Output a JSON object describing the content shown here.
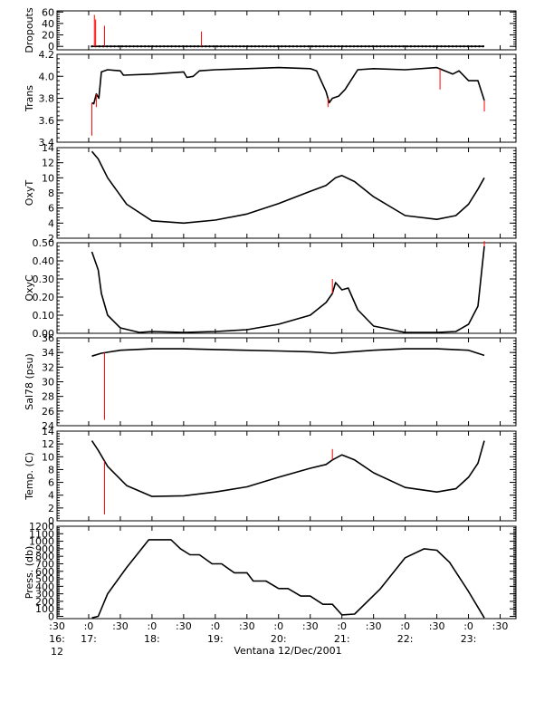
{
  "figure": {
    "xlabel": "Ventana 12/Dec/2001",
    "x_ticks": [
      {
        "t": 16.5,
        "line1": ":30",
        "line2": "16:",
        "line3": "12"
      },
      {
        "t": 17.0,
        "line1": ":0",
        "line2": "17:",
        "line3": ""
      },
      {
        "t": 17.5,
        "line1": ":30",
        "line2": "",
        "line3": ""
      },
      {
        "t": 18.0,
        "line1": ":0",
        "line2": "18:",
        "line3": ""
      },
      {
        "t": 18.5,
        "line1": ":30",
        "line2": "",
        "line3": ""
      },
      {
        "t": 19.0,
        "line1": ":0",
        "line2": "19:",
        "line3": ""
      },
      {
        "t": 19.5,
        "line1": ":30",
        "line2": "",
        "line3": ""
      },
      {
        "t": 20.0,
        "line1": ":0",
        "line2": "20:",
        "line3": ""
      },
      {
        "t": 20.5,
        "line1": ":30",
        "line2": "",
        "line3": ""
      },
      {
        "t": 21.0,
        "line1": ":0",
        "line2": "21:",
        "line3": ""
      },
      {
        "t": 21.5,
        "line1": ":30",
        "line2": "",
        "line3": ""
      },
      {
        "t": 22.0,
        "line1": ":0",
        "line2": "22:",
        "line3": ""
      },
      {
        "t": 22.5,
        "line1": ":30",
        "line2": "",
        "line3": ""
      },
      {
        "t": 23.0,
        "line1": ":0",
        "line2": "23:",
        "line3": ""
      },
      {
        "t": 23.5,
        "line1": ":30",
        "line2": "",
        "line3": ""
      }
    ],
    "xlim": [
      16.5,
      23.75
    ]
  },
  "chart_data": [
    {
      "type": "line",
      "ylabel": "Dropouts",
      "ylim": [
        -6,
        62
      ],
      "yticks": [
        0,
        20,
        40,
        60
      ],
      "ytick_labels": [
        "0",
        "20",
        "40",
        "60"
      ],
      "series": [
        {
          "color": "#000000",
          "x": [
            17.05,
            23.25
          ],
          "y": [
            0,
            0
          ],
          "markers": true
        },
        {
          "color": "#ff0000",
          "spikes": [
            [
              17.09,
              55
            ],
            [
              17.11,
              47
            ],
            [
              17.25,
              36
            ],
            [
              18.78,
              26
            ]
          ]
        }
      ]
    },
    {
      "type": "line",
      "ylabel": "Trans",
      "ylim": [
        3.4,
        4.2
      ],
      "yticks": [
        3.4,
        3.6,
        3.8,
        4.0,
        4.2
      ],
      "ytick_labels": [
        "3.4",
        "3.6",
        "3.8",
        "4.0",
        "4.2"
      ],
      "series": [
        {
          "color": "#000000",
          "x": [
            17.05,
            17.08,
            17.12,
            17.16,
            17.2,
            17.3,
            17.5,
            17.55,
            18.0,
            18.5,
            18.55,
            18.65,
            18.75,
            19.0,
            19.5,
            20.0,
            20.5,
            20.6,
            20.75,
            20.8,
            20.85,
            20.95,
            21.05,
            21.25,
            21.5,
            22.0,
            22.5,
            22.75,
            22.85,
            23.0,
            23.15,
            23.25
          ],
          "y": [
            3.76,
            3.75,
            3.84,
            3.8,
            4.04,
            4.06,
            4.05,
            4.01,
            4.02,
            4.04,
            3.99,
            4.0,
            4.05,
            4.06,
            4.07,
            4.08,
            4.07,
            4.05,
            3.86,
            3.76,
            3.8,
            3.82,
            3.88,
            4.06,
            4.07,
            4.06,
            4.08,
            4.02,
            4.05,
            3.96,
            3.96,
            3.78
          ]
        },
        {
          "color": "#ff0000",
          "spikes": [
            [
              17.05,
              3.46
            ],
            [
              17.12,
              3.72
            ],
            [
              20.78,
              3.72
            ],
            [
              22.55,
              3.88
            ],
            [
              23.25,
              3.68
            ]
          ]
        }
      ]
    },
    {
      "type": "line",
      "ylabel": "OxyT",
      "ylim": [
        2,
        14
      ],
      "yticks": [
        2,
        4,
        6,
        8,
        10,
        12,
        14
      ],
      "ytick_labels": [
        "2",
        "4",
        "6",
        "8",
        "10",
        "12",
        "14"
      ],
      "series": [
        {
          "color": "#000000",
          "x": [
            17.05,
            17.15,
            17.3,
            17.6,
            18.0,
            18.5,
            19.0,
            19.5,
            20.0,
            20.5,
            20.75,
            20.9,
            21.0,
            21.2,
            21.5,
            22.0,
            22.5,
            22.8,
            23.0,
            23.15,
            23.25
          ],
          "y": [
            13.5,
            12.5,
            10.0,
            6.5,
            4.3,
            4.0,
            4.4,
            5.2,
            6.6,
            8.2,
            9.0,
            10.0,
            10.3,
            9.5,
            7.5,
            5.0,
            4.5,
            5.0,
            6.5,
            8.5,
            10.0
          ]
        }
      ]
    },
    {
      "type": "line",
      "ylabel": "OxyC",
      "ylim": [
        0,
        0.5
      ],
      "yticks": [
        0,
        0.1,
        0.2,
        0.3,
        0.4,
        0.5
      ],
      "ytick_labels": [
        "0.00",
        "0.10",
        "0.20",
        "0.30",
        "0.40",
        "0.50"
      ],
      "series": [
        {
          "color": "#000000",
          "x": [
            17.05,
            17.1,
            17.15,
            17.2,
            17.3,
            17.5,
            17.8,
            18.0,
            18.5,
            19.0,
            19.5,
            20.0,
            20.5,
            20.75,
            20.85,
            20.9,
            21.0,
            21.1,
            21.25,
            21.5,
            22.0,
            22.5,
            22.8,
            23.0,
            23.15,
            23.25
          ],
          "y": [
            0.45,
            0.4,
            0.35,
            0.22,
            0.1,
            0.03,
            0.005,
            0.01,
            0.005,
            0.01,
            0.02,
            0.05,
            0.1,
            0.17,
            0.22,
            0.28,
            0.24,
            0.25,
            0.13,
            0.04,
            0.005,
            0.005,
            0.01,
            0.05,
            0.15,
            0.48
          ]
        },
        {
          "color": "#ff0000",
          "spikes": [
            [
              20.85,
              0.3
            ],
            [
              23.25,
              0.51
            ]
          ]
        }
      ]
    },
    {
      "type": "line",
      "ylabel": "Sal78 (psu)",
      "ylim": [
        24,
        36
      ],
      "yticks": [
        24,
        26,
        28,
        30,
        32,
        34,
        36
      ],
      "ytick_labels": [
        "24",
        "26",
        "28",
        "30",
        "32",
        "34",
        "36"
      ],
      "series": [
        {
          "color": "#000000",
          "x": [
            17.05,
            17.2,
            17.5,
            18.0,
            18.5,
            19.0,
            20.0,
            20.5,
            20.85,
            21.0,
            21.5,
            22.0,
            22.5,
            23.0,
            23.25
          ],
          "y": [
            33.5,
            33.9,
            34.3,
            34.5,
            34.5,
            34.4,
            34.2,
            34.1,
            33.9,
            34.0,
            34.3,
            34.5,
            34.5,
            34.3,
            33.6
          ]
        },
        {
          "color": "#ff0000",
          "spikes": [
            [
              17.25,
              24.8
            ]
          ]
        }
      ]
    },
    {
      "type": "line",
      "ylabel": "Temp. (C)",
      "ylim": [
        0,
        14
      ],
      "yticks": [
        0,
        2,
        4,
        6,
        8,
        10,
        12,
        14
      ],
      "ytick_labels": [
        "0",
        "2",
        "4",
        "6",
        "8",
        "10",
        "12",
        "14"
      ],
      "series": [
        {
          "color": "#000000",
          "x": [
            17.05,
            17.15,
            17.3,
            17.6,
            18.0,
            18.5,
            19.0,
            19.5,
            20.0,
            20.5,
            20.75,
            20.85,
            21.0,
            21.2,
            21.5,
            22.0,
            22.5,
            22.8,
            23.0,
            23.15,
            23.25
          ],
          "y": [
            12.5,
            11.0,
            8.5,
            5.5,
            3.8,
            3.9,
            4.5,
            5.3,
            6.8,
            8.2,
            8.8,
            9.5,
            10.3,
            9.5,
            7.5,
            5.2,
            4.5,
            5.0,
            6.8,
            9.0,
            12.5
          ]
        },
        {
          "color": "#ff0000",
          "spikes": [
            [
              17.25,
              1.0
            ],
            [
              20.85,
              11.2
            ]
          ]
        }
      ]
    },
    {
      "type": "line",
      "ylabel": "Press. (db)",
      "ylim": [
        -30,
        1200
      ],
      "yticks": [
        0,
        100,
        200,
        300,
        400,
        500,
        600,
        700,
        800,
        900,
        1000,
        1100,
        1200
      ],
      "ytick_labels": [
        "0",
        "100",
        "200",
        "300",
        "400",
        "500",
        "600",
        "700",
        "800",
        "900",
        "1000",
        "1100",
        "1200"
      ],
      "series": [
        {
          "color": "#000000",
          "x": [
            17.05,
            17.15,
            17.3,
            17.6,
            17.95,
            18.3,
            18.45,
            18.6,
            18.75,
            18.95,
            19.1,
            19.3,
            19.5,
            19.6,
            19.8,
            20.0,
            20.15,
            20.35,
            20.5,
            20.7,
            20.85,
            21.0,
            21.2,
            21.6,
            22.0,
            22.3,
            22.5,
            22.7,
            23.0,
            23.25
          ],
          "y": [
            -20,
            0,
            300,
            650,
            1020,
            1020,
            900,
            820,
            820,
            700,
            700,
            580,
            580,
            470,
            470,
            370,
            370,
            270,
            270,
            160,
            160,
            20,
            30,
            360,
            780,
            900,
            880,
            720,
            330,
            -20
          ]
        }
      ]
    }
  ]
}
